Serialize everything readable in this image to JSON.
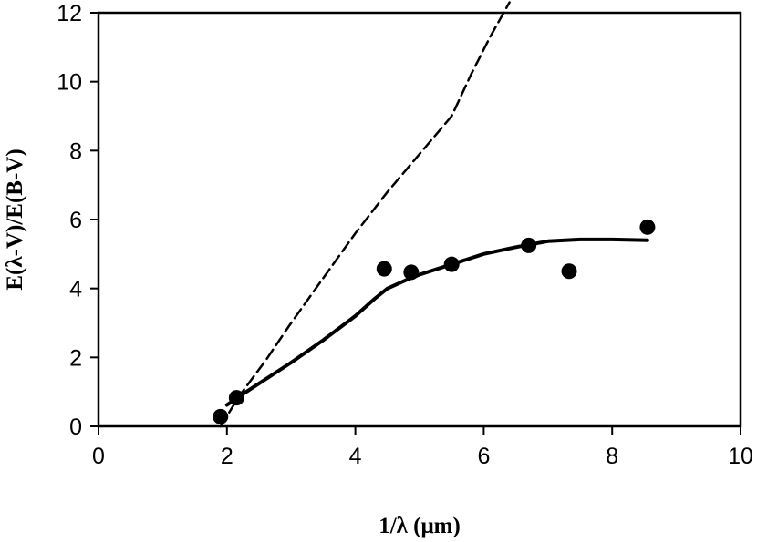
{
  "chart_data": {
    "type": "scatter",
    "title": "",
    "xlabel": "1/λ (μm)",
    "ylabel": "E(λ-V)/E(B-V)",
    "xlim": [
      0,
      10
    ],
    "ylim": [
      0,
      12
    ],
    "x_ticks": [
      0,
      2,
      4,
      6,
      8,
      10
    ],
    "y_ticks": [
      0,
      2,
      4,
      6,
      8,
      10,
      12
    ],
    "grid": false,
    "legend": "none",
    "series": [
      {
        "style": "markers",
        "color": "#000000",
        "x": [
          1.9,
          2.15,
          4.45,
          4.87,
          5.5,
          6.7,
          7.33,
          8.55
        ],
        "y": [
          0.28,
          0.83,
          4.57,
          4.47,
          4.7,
          5.25,
          4.5,
          5.78
        ]
      },
      {
        "style": "solid-line",
        "color": "#000000",
        "x": [
          2.0,
          2.3,
          3.0,
          3.5,
          4.0,
          4.3,
          4.5,
          4.8,
          5.0,
          5.5,
          6.0,
          6.5,
          7.0,
          7.5,
          8.0,
          8.55
        ],
        "y": [
          0.62,
          1.0,
          1.85,
          2.5,
          3.2,
          3.7,
          4.0,
          4.25,
          4.4,
          4.7,
          5.0,
          5.2,
          5.37,
          5.42,
          5.42,
          5.4
        ]
      },
      {
        "style": "dashed-line",
        "color": "#000000",
        "x": [
          1.9,
          2.2,
          2.6,
          3.0,
          3.5,
          4.0,
          4.5,
          5.0,
          5.5,
          5.8,
          6.1,
          6.4
        ],
        "y": [
          0.0,
          0.9,
          1.9,
          3.0,
          4.3,
          5.6,
          6.8,
          7.9,
          9.0,
          10.2,
          11.3,
          12.3
        ]
      }
    ]
  }
}
